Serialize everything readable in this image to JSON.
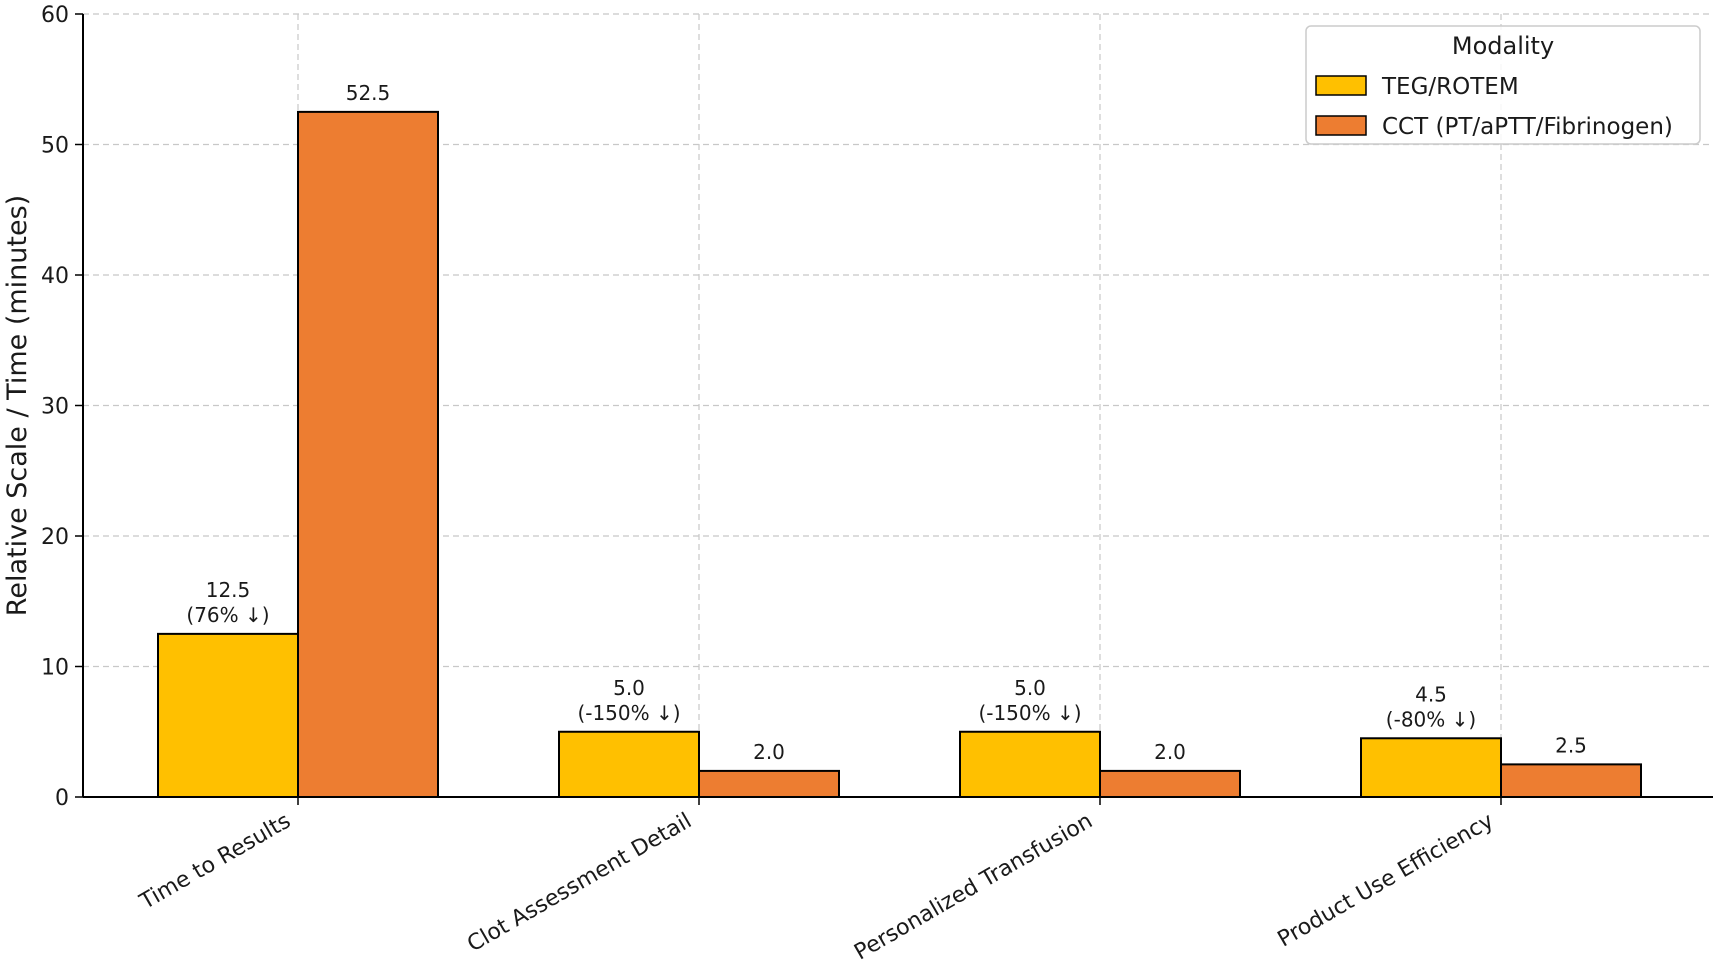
{
  "chart_data": {
    "type": "bar",
    "title": "",
    "xlabel": "",
    "ylabel": "Relative Scale / Time (minutes)",
    "ylim": [
      0,
      60
    ],
    "yticks": [
      0,
      10,
      20,
      30,
      40,
      50,
      60
    ],
    "grid": true,
    "categories": [
      "Time to Results",
      "Clot Assessment Detail",
      "Personalized Transfusion",
      "Product Use Efficiency"
    ],
    "series": [
      {
        "name": "TEG/ROTEM",
        "color": "#FFC000",
        "values": [
          12.5,
          5.0,
          5.0,
          4.5
        ],
        "labels": [
          [
            "12.5",
            "(76% ↓)"
          ],
          [
            "5.0",
            "(-150% ↓)"
          ],
          [
            "5.0",
            "(-150% ↓)"
          ],
          [
            "4.5",
            "(-80% ↓)"
          ]
        ]
      },
      {
        "name": "CCT (PT/aPTT/Fibrinogen)",
        "color": "#ED7D31",
        "values": [
          52.5,
          2.0,
          2.0,
          2.5
        ],
        "labels": [
          [
            "52.5"
          ],
          [
            "2.0"
          ],
          [
            "2.0"
          ],
          [
            "2.5"
          ]
        ]
      }
    ],
    "legend": {
      "title": "Modality",
      "position": "top-right"
    }
  }
}
